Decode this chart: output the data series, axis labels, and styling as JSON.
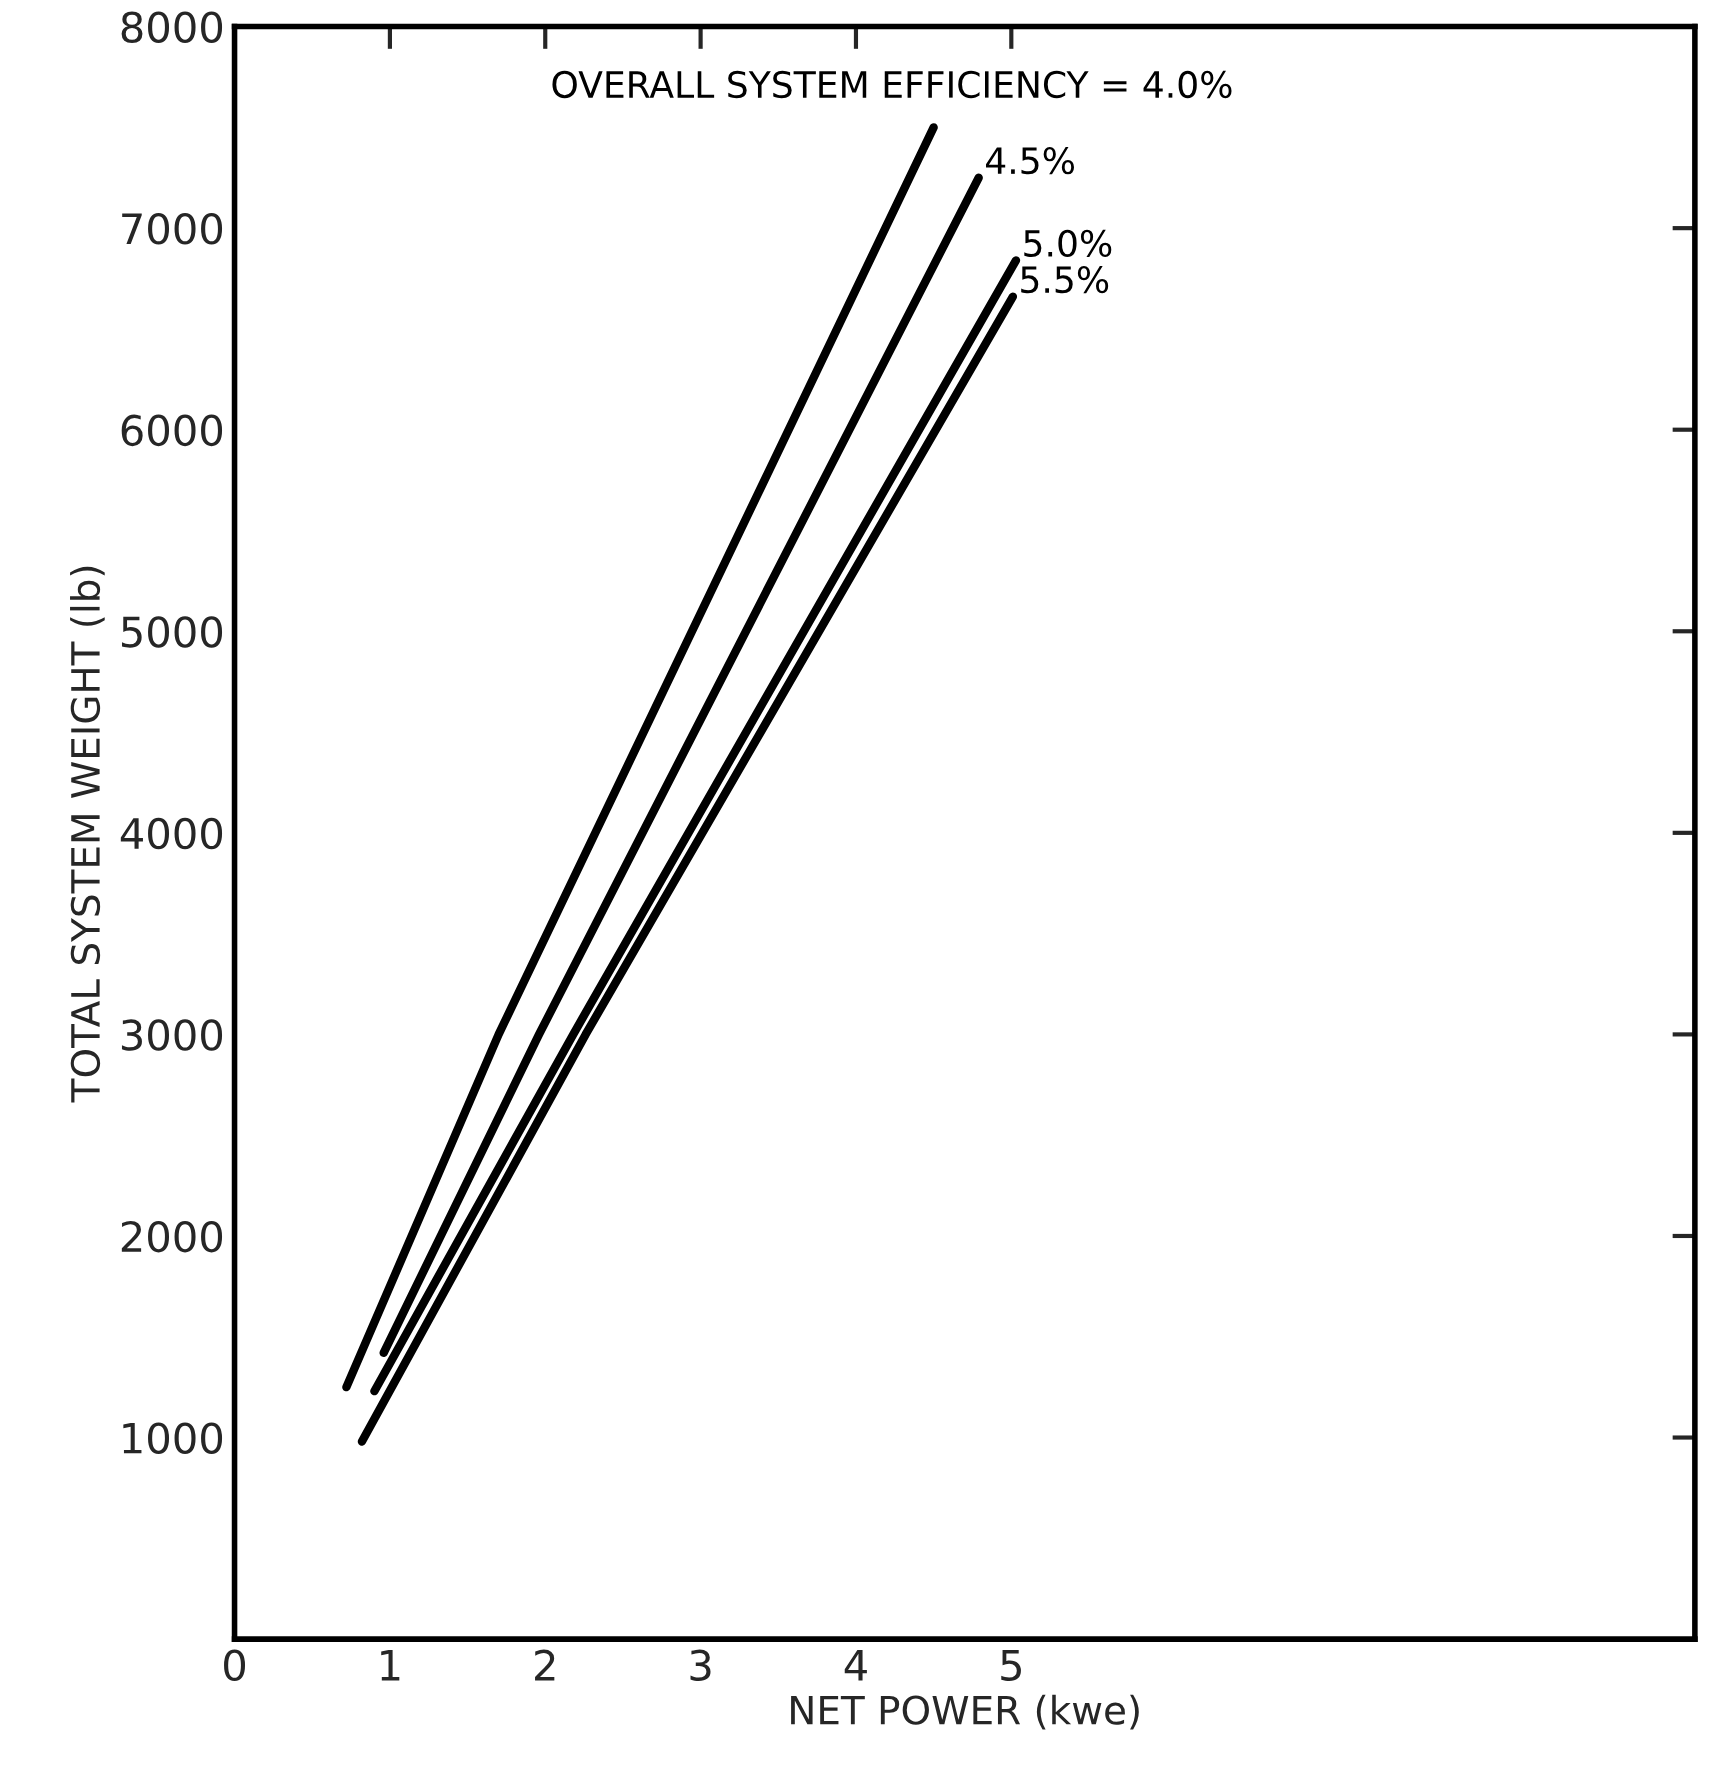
{
  "chart_data": {
    "type": "line",
    "xlabel": "NET POWER (kwe)",
    "ylabel": "TOTAL SYSTEM WEIGHT (lb)",
    "xlim": [
      0,
      9.4
    ],
    "xticks": [
      0,
      1,
      2,
      3,
      4,
      5
    ],
    "ylim": [
      0,
      8000
    ],
    "yticks": [
      1000,
      2000,
      3000,
      4000,
      5000,
      6000,
      7000,
      8000
    ],
    "grid": false,
    "legend": false,
    "marker": "none",
    "line_style": "solid",
    "series": [
      {
        "name": "OVERALL SYSTEM EFFICIENCY = 4.0%",
        "color": "#000000",
        "x": [
          0.72,
          1.7,
          4.5
        ],
        "values": [
          1250,
          3000,
          7500
        ]
      },
      {
        "name": "4.5%",
        "color": "#000000",
        "x": [
          0.96,
          1.96,
          4.79
        ],
        "values": [
          1420,
          3000,
          7250
        ]
      },
      {
        "name": "5.0%",
        "color": "#000000",
        "x": [
          0.9,
          2.18,
          5.03
        ],
        "values": [
          1230,
          3000,
          6840
        ]
      },
      {
        "name": "5.5%",
        "color": "#000000",
        "x": [
          0.82,
          2.26,
          5.01
        ],
        "values": [
          980,
          3000,
          6660
        ]
      }
    ]
  }
}
